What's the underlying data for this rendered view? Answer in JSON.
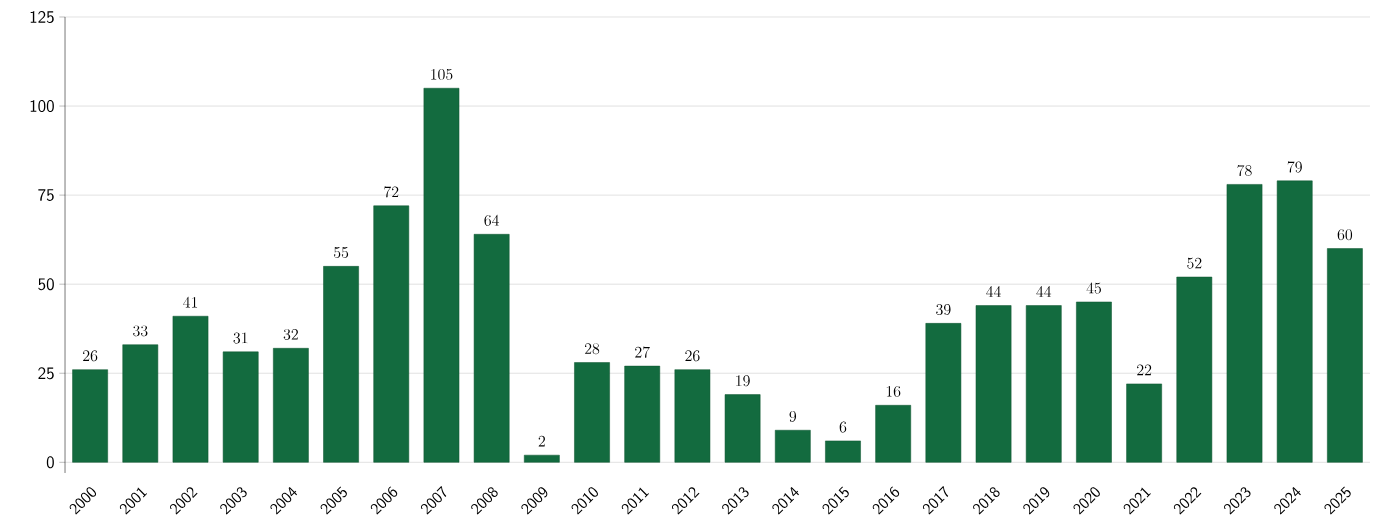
{
  "chart_data": {
    "type": "bar",
    "categories": [
      "2000",
      "2001",
      "2002",
      "2003",
      "2004",
      "2005",
      "2006",
      "2007",
      "2008",
      "2009",
      "2010",
      "2011",
      "2012",
      "2013",
      "2014",
      "2015",
      "2016",
      "2017",
      "2018",
      "2019",
      "2020",
      "2021",
      "2022",
      "2023",
      "2024",
      "2025"
    ],
    "values": [
      26,
      33,
      41,
      31,
      32,
      55,
      72,
      105,
      64,
      2,
      28,
      27,
      26,
      19,
      9,
      6,
      16,
      39,
      44,
      44,
      45,
      22,
      52,
      78,
      79,
      60
    ],
    "color": "#136b3f",
    "ylim": [
      -3,
      125
    ],
    "yticks": [
      0,
      25,
      50,
      75,
      100,
      125
    ],
    "grid": "y",
    "data_labels": true
  }
}
